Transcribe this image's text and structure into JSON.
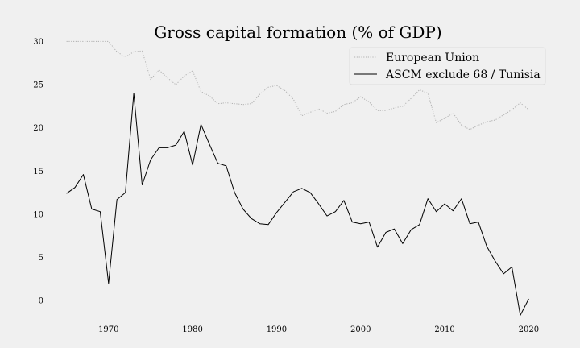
{
  "chart_data": {
    "type": "line",
    "title": "Gross capital formation (% of GDP)",
    "xlabel": "",
    "ylabel": "",
    "xlim": [
      1963.5,
      2021.5
    ],
    "ylim": [
      -2.5,
      32
    ],
    "xticks": [
      "1970",
      "1980",
      "1990",
      "2000",
      "2010",
      "2020"
    ],
    "yticks": [
      "0",
      "5",
      "10",
      "15",
      "20",
      "25",
      "30"
    ],
    "grid": false,
    "legend_position": "top-right",
    "series": [
      {
        "name": "European Union",
        "color": "#b0b0b0",
        "style": "dotted",
        "x": [
          1965,
          1966,
          1967,
          1968,
          1969,
          1970,
          1971,
          1972,
          1973,
          1974,
          1975,
          1976,
          1977,
          1978,
          1979,
          1980,
          1981,
          1982,
          1983,
          1984,
          1985,
          1986,
          1987,
          1988,
          1989,
          1990,
          1991,
          1992,
          1993,
          1994,
          1995,
          1996,
          1997,
          1998,
          1999,
          2000,
          2001,
          2002,
          2003,
          2004,
          2005,
          2006,
          2007,
          2008,
          2009,
          2010,
          2011,
          2012,
          2013,
          2014,
          2015,
          2016,
          2017,
          2018,
          2019,
          2020
        ],
        "values": [
          30.0,
          30.0,
          30.0,
          30.0,
          30.0,
          30.0,
          28.8,
          28.2,
          28.8,
          28.9,
          25.6,
          26.7,
          25.8,
          25.0,
          26.0,
          26.6,
          24.2,
          23.7,
          22.8,
          22.9,
          22.8,
          22.7,
          22.8,
          23.9,
          24.7,
          24.9,
          24.3,
          23.3,
          21.4,
          21.8,
          22.2,
          21.7,
          21.9,
          22.7,
          22.9,
          23.6,
          23.0,
          22.0,
          22.0,
          22.3,
          22.5,
          23.4,
          24.4,
          24.0,
          20.6,
          21.1,
          21.7,
          20.3,
          19.8,
          20.3,
          20.7,
          20.9,
          21.5,
          22.1,
          22.9,
          22.1
        ]
      },
      {
        "name": "ASCM exclude 68 / Tunisia",
        "color": "#000000",
        "style": "solid",
        "x": [
          1965,
          1966,
          1967,
          1968,
          1969,
          1970,
          1971,
          1972,
          1973,
          1974,
          1975,
          1976,
          1977,
          1978,
          1979,
          1980,
          1981,
          1982,
          1983,
          1984,
          1985,
          1986,
          1987,
          1988,
          1989,
          1990,
          1991,
          1992,
          1993,
          1994,
          1995,
          1996,
          1997,
          1998,
          1999,
          2000,
          2001,
          2002,
          2003,
          2004,
          2005,
          2006,
          2007,
          2008,
          2009,
          2010,
          2011,
          2012,
          2013,
          2014,
          2015,
          2016,
          2017,
          2018,
          2019,
          2020
        ],
        "values": [
          12.4,
          13.1,
          14.6,
          10.6,
          10.3,
          2.0,
          11.7,
          12.5,
          24.0,
          13.4,
          16.3,
          17.7,
          17.7,
          18.0,
          19.6,
          15.7,
          20.4,
          18.1,
          15.9,
          15.6,
          12.5,
          10.6,
          9.5,
          8.9,
          8.8,
          10.2,
          11.4,
          12.6,
          13.0,
          12.5,
          11.2,
          9.8,
          10.3,
          11.6,
          9.1,
          8.9,
          9.1,
          6.2,
          7.9,
          8.3,
          6.6,
          8.2,
          8.8,
          11.8,
          10.3,
          11.2,
          10.4,
          11.8,
          8.9,
          9.1,
          6.3,
          4.6,
          3.1,
          3.9,
          -1.7,
          0.2
        ]
      }
    ]
  }
}
